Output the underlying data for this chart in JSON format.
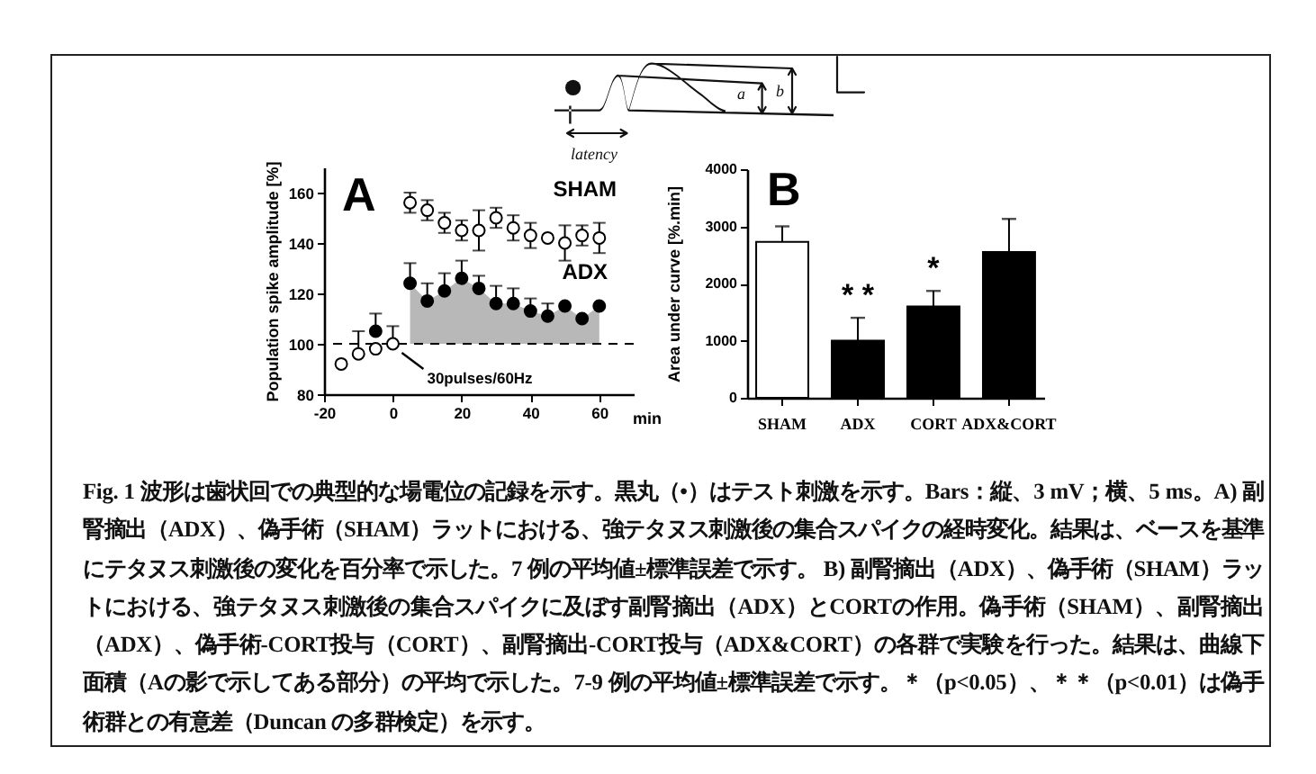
{
  "chart_data": [
    {
      "type": "other",
      "annotations": [
        "latency",
        "a",
        "b"
      ]
    },
    {
      "type": "scatter",
      "title": "A",
      "xlabel": "min",
      "ylabel": "Population spike amplitude [%]",
      "x": [
        -15,
        -10,
        -5,
        0,
        5,
        10,
        15,
        20,
        25,
        30,
        35,
        40,
        45,
        50,
        55,
        60
      ],
      "xlim": [
        -20,
        70
      ],
      "xticks": [
        -20,
        0,
        20,
        40,
        60
      ],
      "ylim": [
        80,
        170
      ],
      "yticks": [
        80,
        100,
        120,
        140,
        160
      ],
      "marker": "circle",
      "series": [
        {
          "name": "SHAM",
          "color": "#ffffff",
          "values": [
            92,
            96,
            98,
            100,
            156,
            153,
            148,
            145,
            145,
            150,
            146,
            143,
            142,
            140,
            143,
            142
          ],
          "errors": [
            null,
            [
              96,
              105
            ],
            null,
            [
              100,
              107
            ],
            4,
            4,
            4,
            4,
            8,
            4,
            5,
            5,
            null,
            7,
            4,
            6
          ]
        },
        {
          "name": "ADX",
          "color": "#000000",
          "values": [
            null,
            null,
            105,
            null,
            124,
            117,
            121,
            126,
            122,
            116,
            116,
            113,
            111,
            115,
            110,
            115
          ],
          "errors": [
            null,
            null,
            [
              105,
              112
            ],
            null,
            [
              124,
              132
            ],
            [
              117,
              124
            ],
            [
              121,
              128
            ],
            [
              126,
              133
            ],
            [
              122,
              127
            ],
            [
              116,
              123
            ],
            [
              116,
              122
            ],
            [
              113,
              118
            ],
            [
              111,
              116
            ],
            null,
            null,
            null
          ],
          "lower": [
            null,
            null,
            null,
            null,
            100,
            100,
            100,
            100,
            100,
            100,
            100,
            100,
            100,
            100,
            100,
            100
          ],
          "upper": [
            null,
            null,
            null,
            null,
            124,
            117,
            121,
            126,
            122,
            116,
            116,
            113,
            111,
            115,
            110,
            115
          ]
        }
      ],
      "ref_lines": [
        {
          "axis": "y",
          "value": 100,
          "line_style": "dashed"
        }
      ],
      "annotations": [
        {
          "text": "30pulses/60Hz",
          "x": 0,
          "y": 100
        }
      ]
    },
    {
      "type": "bar",
      "title": "B",
      "ylabel": "Area under curve [%.min]",
      "categories": [
        "SHAM",
        "ADX",
        "CORT",
        "ADX&CORT"
      ],
      "values": [
        2730,
        1000,
        1600,
        2550
      ],
      "colors": [
        "#ffffff",
        "#000000",
        "#000000",
        "#000000"
      ],
      "errors": [
        [
          2730,
          3000
        ],
        [
          1000,
          1400
        ],
        [
          1600,
          1870
        ],
        [
          2550,
          3130
        ]
      ],
      "ylim": [
        0,
        4000
      ],
      "yticks": [
        0,
        1000,
        2000,
        3000,
        4000
      ],
      "annotations": [
        {
          "text": "* *",
          "x": "ADX",
          "y": 1400
        },
        {
          "text": "*",
          "x": "CORT",
          "y": 1870
        }
      ]
    },
    {
      "type": "other",
      "annotations": [
        "Fig. 1 波形は歯状回での典型的な場電位の記録を示す。黒丸（•）はテスト刺激を示す。Bars：縦、3 mV；横、5 ms。A) 副腎摘出（ADX）、偽手術（SHAM）ラットにおける、強テタヌス刺激後の集合スパイクの経時変化。結果は、ベースを基準にテタヌス刺激後の変化を百分率で示した。7 例の平均値±標準誤差で示す。 B) 副腎摘出（ADX）、偽手術（SHAM）ラットにおける、強テタヌス刺激後の集合スパイクに及ぼす副腎摘出（ADX）とCORTの作用。偽手術（SHAM）、副腎摘出（ADX）、偽手術-CORT投与（CORT）、副腎摘出-CORT投与（ADX&CORT）の各群で実験を行った。結果は、曲線下面積（Aの影で示してある部分）の平均で示した。7-9 例の平均値±標準誤差で示す。＊（p<0.05）、＊＊（p<0.01）は偽手術群との有意差（Duncan の多群検定）を示す。"
      ]
    }
  ]
}
